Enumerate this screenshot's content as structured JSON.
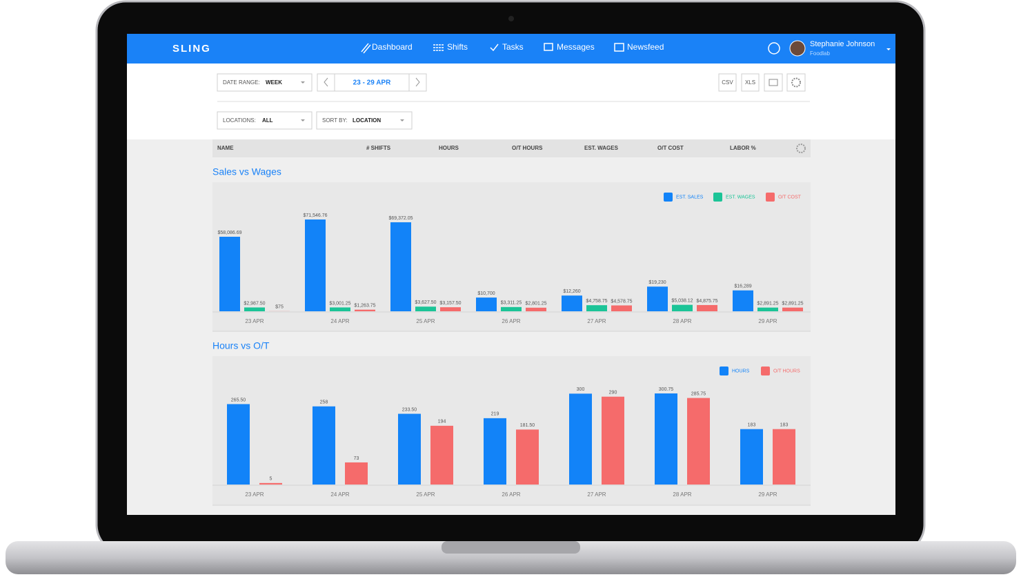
{
  "header": {
    "logo": "SLING",
    "nav": [
      "Dashboard",
      "Shifts",
      "Tasks",
      "Messages",
      "Newsfeed"
    ],
    "user": {
      "name": "Stephanie Johnson",
      "org": "Foodlab"
    }
  },
  "filters": {
    "date_range_label": "DATE RANGE:",
    "date_range_value": "WEEK",
    "date": "23 - 29 APR",
    "exports": [
      "CSV",
      "XLS"
    ],
    "locations_label": "LOCATIONS:",
    "locations_value": "ALL",
    "sort_label": "SORT BY:",
    "sort_value": "LOCATION"
  },
  "table": {
    "columns": [
      "NAME",
      "# SHIFTS",
      "HOURS",
      "O/T HOURS",
      "EST. WAGES",
      "O/T COST",
      "LABOR %"
    ]
  },
  "chart_data": [
    {
      "type": "bar",
      "title": "Sales vs Wages",
      "categories": [
        "23 APR",
        "24 APR",
        "25 APR",
        "26 APR",
        "27 APR",
        "28 APR",
        "29 APR"
      ],
      "series": [
        {
          "name": "EST. SALES",
          "color": "#1283f8",
          "values": [
            58086.69,
            71546.76,
            69372.05,
            10700,
            12260,
            19230,
            16289
          ],
          "value_labels": [
            "$58,086.69",
            "$71,546.76",
            "$69,372.05",
            "$10,700",
            "$12,260",
            "$19,230",
            "$16,289"
          ]
        },
        {
          "name": "EST. WAGES",
          "color": "#1cc497",
          "values": [
            2987.5,
            3001.25,
            3627.5,
            3311.25,
            4758.75,
            5038.12,
            2891.25
          ],
          "value_labels": [
            "$2,987.50",
            "$3,001.25",
            "$3,627.50",
            "$3,311.25",
            "$4,758.75",
            "$5,038.12",
            "$2,891.25"
          ]
        },
        {
          "name": "O/T COST",
          "color": "#f56b6b",
          "values": [
            75,
            1263.75,
            3157.5,
            2801.25,
            4578.75,
            4875.75,
            2891.25
          ],
          "value_labels": [
            "$75",
            "$1,263.75",
            "$3,157.50",
            "$2,801.25",
            "$4,578.75",
            "$4,875.75",
            "$2,891.25"
          ]
        }
      ]
    },
    {
      "type": "bar",
      "title": "Hours vs O/T",
      "categories": [
        "23 APR",
        "24 APR",
        "25 APR",
        "26 APR",
        "27 APR",
        "28 APR",
        "29 APR"
      ],
      "series": [
        {
          "name": "HOURS",
          "color": "#1283f8",
          "values": [
            265.5,
            258,
            233.5,
            219,
            300,
            300.75,
            183
          ],
          "value_labels": [
            "265.50",
            "258",
            "233.50",
            "219",
            "300",
            "300.75",
            "183"
          ]
        },
        {
          "name": "O/T HOURS",
          "color": "#f56b6b",
          "values": [
            5,
            73,
            194,
            181.5,
            290,
            285.75,
            183
          ],
          "value_labels": [
            "5",
            "73",
            "194",
            "181.50",
            "290",
            "285.75",
            "183"
          ]
        }
      ]
    }
  ]
}
